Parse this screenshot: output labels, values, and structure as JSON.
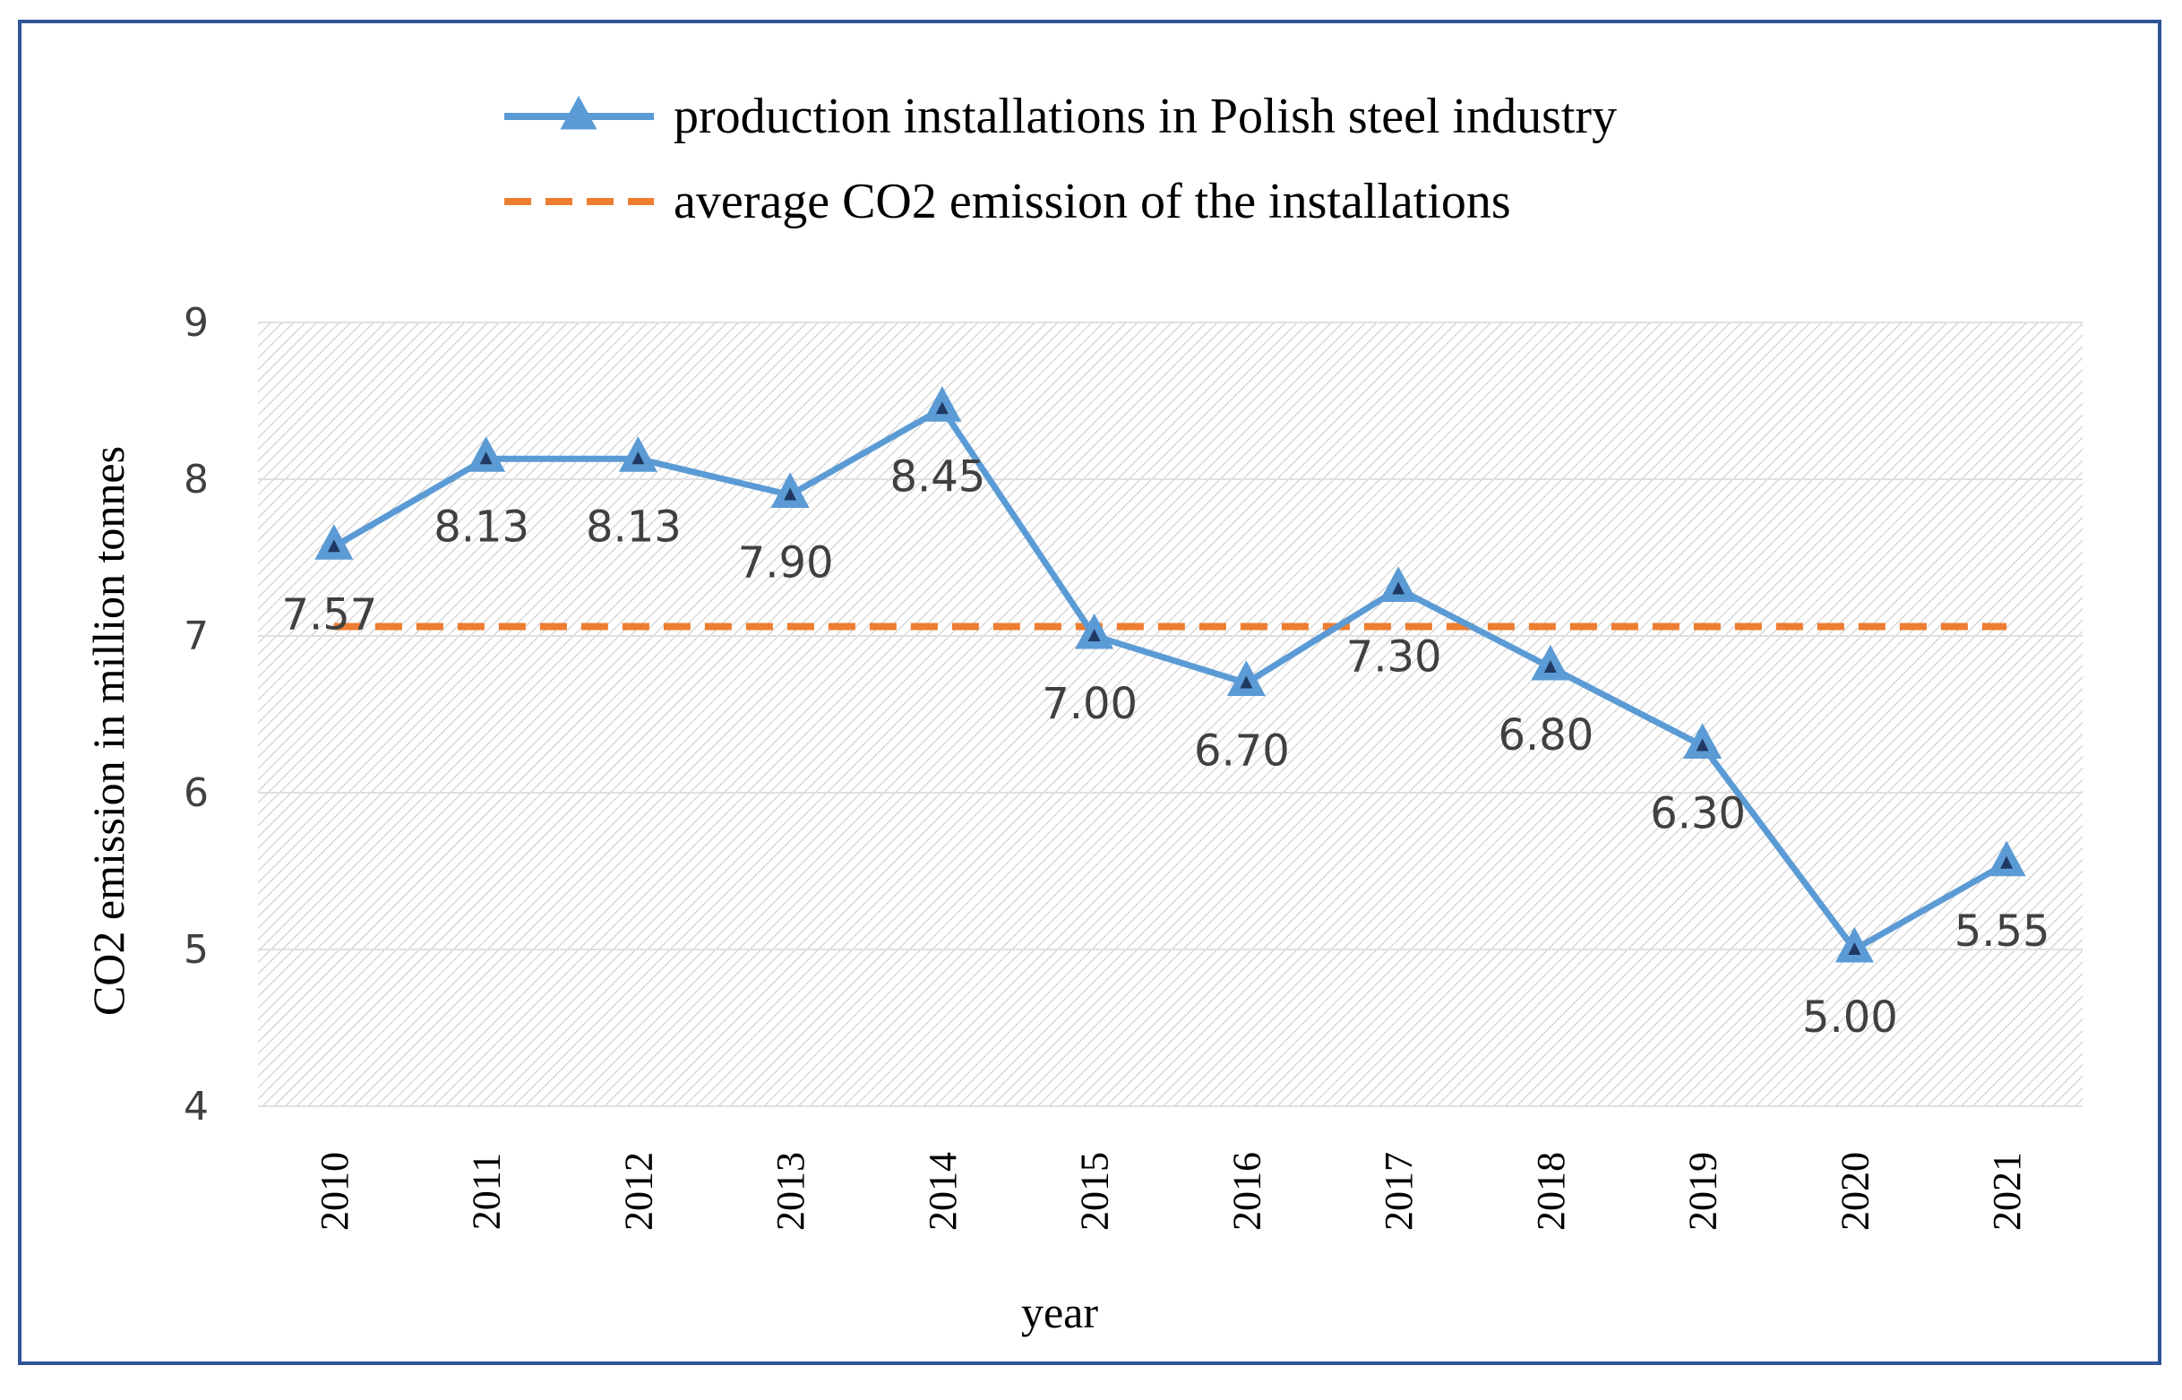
{
  "chart_data": {
    "type": "line",
    "title": "",
    "xlabel": "year",
    "ylabel": "CO2 emission in million tonnes",
    "categories": [
      "2010",
      "2011",
      "2012",
      "2013",
      "2014",
      "2015",
      "2016",
      "2017",
      "2018",
      "2019",
      "2020",
      "2021"
    ],
    "y_ticks": [
      "4",
      "5",
      "6",
      "7",
      "8",
      "9"
    ],
    "ylim": [
      4,
      9
    ],
    "grid": true,
    "legend_position": "top",
    "series": [
      {
        "name": "production installations in Polish steel industry",
        "values": [
          7.57,
          8.13,
          8.13,
          7.9,
          8.45,
          7.0,
          6.7,
          7.3,
          6.8,
          6.3,
          5.0,
          5.55
        ],
        "labels": [
          "7.57",
          "8.13",
          "8.13",
          "7.90",
          "8.45",
          "7.00",
          "6.70",
          "7.30",
          "6.80",
          "6.30",
          "5.00",
          "5.55"
        ],
        "label_offset_dir": [
          "below",
          "below",
          "below",
          "below",
          "below",
          "below",
          "below",
          "below",
          "below",
          "below",
          "below",
          "below"
        ],
        "color": "#5b9bd5",
        "marker": "triangle"
      },
      {
        "name": "average CO2 emission of the installations",
        "value": 7.06,
        "color": "#ed7d31",
        "style": "dashed"
      }
    ]
  },
  "colors": {
    "frame": "#2f5597",
    "hatch": "#c8c8c8",
    "grid": "#e0e0e0",
    "axis_text": "#404040",
    "label_text": "#404040",
    "marker_inner": "#1f3864"
  }
}
